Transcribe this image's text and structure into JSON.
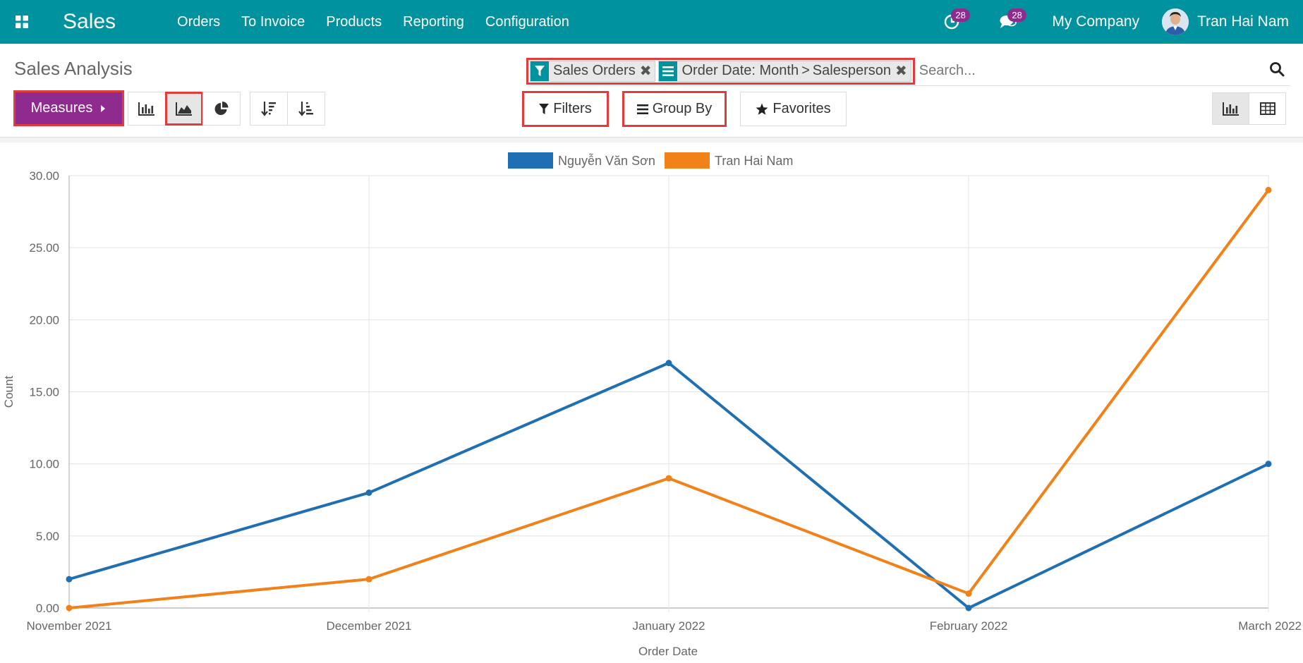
{
  "navbar": {
    "app_title": "Sales",
    "menu": [
      "Orders",
      "To Invoice",
      "Products",
      "Reporting",
      "Configuration"
    ],
    "activity_count": "28",
    "message_count": "28",
    "company": "My Company",
    "user_name": "Tran Hai Nam"
  },
  "control_panel": {
    "title": "Sales Analysis",
    "facets": {
      "filter_label": "Sales Orders",
      "groupby_first": "Order Date: Month",
      "groupby_separator": ">",
      "groupby_second": "Salesperson"
    },
    "search_placeholder": "Search...",
    "measures_label": "Measures",
    "filters_label": "Filters",
    "groupby_label": "Group By",
    "favorites_label": "Favorites"
  },
  "colors": {
    "brand": "#00929e",
    "measures": "#8f2a8f",
    "highlight": "#e23b3b",
    "series_1": "#1f6fb2",
    "series_2": "#f08219"
  },
  "chart_data": {
    "type": "line",
    "categories": [
      "November 2021",
      "December 2021",
      "January 2022",
      "February 2022",
      "March 2022"
    ],
    "series": [
      {
        "name": "Nguyễn Văn Sơn",
        "color": "#1f6fb2",
        "values": [
          2,
          8,
          17,
          0,
          10
        ]
      },
      {
        "name": "Tran Hai Nam",
        "color": "#f08219",
        "values": [
          0,
          2,
          9,
          1,
          29
        ]
      }
    ],
    "xlabel": "Order Date",
    "ylabel": "Count",
    "ylim": [
      0,
      30
    ],
    "yticks": [
      "0.00",
      "5.00",
      "10.00",
      "15.00",
      "20.00",
      "25.00",
      "30.00"
    ],
    "legend_position": "top-center",
    "grid": true
  }
}
